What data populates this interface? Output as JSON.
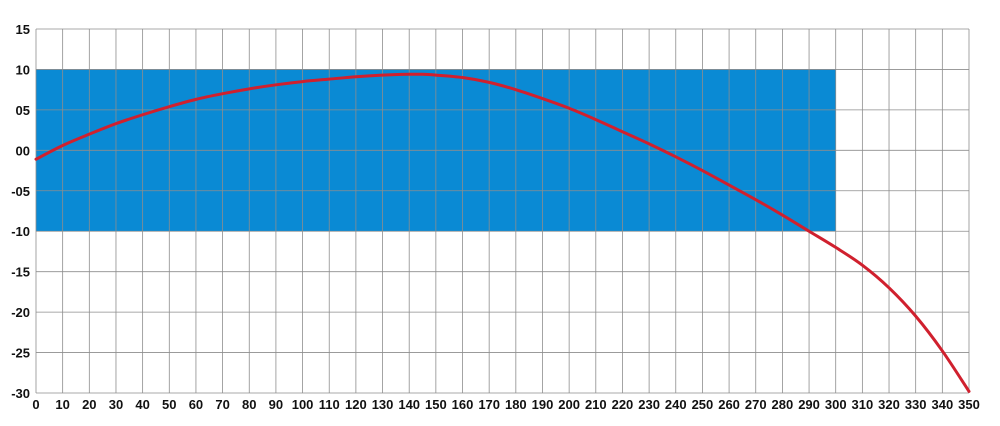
{
  "chart_data": {
    "type": "line",
    "title": "",
    "xlabel": "",
    "ylabel": "",
    "xlim": [
      0,
      350
    ],
    "ylim": [
      -30,
      15
    ],
    "grid": true,
    "legend": "none",
    "x_ticks": [
      {
        "value": 0,
        "label": "0"
      },
      {
        "value": 10,
        "label": "10"
      },
      {
        "value": 20,
        "label": "20"
      },
      {
        "value": 30,
        "label": "30"
      },
      {
        "value": 40,
        "label": "40"
      },
      {
        "value": 50,
        "label": "50"
      },
      {
        "value": 60,
        "label": "60"
      },
      {
        "value": 70,
        "label": "70"
      },
      {
        "value": 80,
        "label": "80"
      },
      {
        "value": 90,
        "label": "90"
      },
      {
        "value": 100,
        "label": "100"
      },
      {
        "value": 110,
        "label": "110"
      },
      {
        "value": 120,
        "label": "120"
      },
      {
        "value": 130,
        "label": "130"
      },
      {
        "value": 140,
        "label": "140"
      },
      {
        "value": 150,
        "label": "150"
      },
      {
        "value": 160,
        "label": "160"
      },
      {
        "value": 170,
        "label": "170"
      },
      {
        "value": 180,
        "label": "180"
      },
      {
        "value": 190,
        "label": "190"
      },
      {
        "value": 200,
        "label": "200"
      },
      {
        "value": 210,
        "label": "210"
      },
      {
        "value": 220,
        "label": "220"
      },
      {
        "value": 230,
        "label": "230"
      },
      {
        "value": 240,
        "label": "240"
      },
      {
        "value": 250,
        "label": "250"
      },
      {
        "value": 260,
        "label": "260"
      },
      {
        "value": 270,
        "label": "270"
      },
      {
        "value": 280,
        "label": "280"
      },
      {
        "value": 290,
        "label": "290"
      },
      {
        "value": 300,
        "label": "300"
      },
      {
        "value": 310,
        "label": "310"
      },
      {
        "value": 320,
        "label": "320"
      },
      {
        "value": 330,
        "label": "330"
      },
      {
        "value": 340,
        "label": "340"
      },
      {
        "value": 350,
        "label": "350"
      }
    ],
    "y_ticks": [
      {
        "value": 15,
        "label": "15"
      },
      {
        "value": 10,
        "label": "10"
      },
      {
        "value": 5,
        "label": "05"
      },
      {
        "value": 0,
        "label": "00"
      },
      {
        "value": -5,
        "label": "-05"
      },
      {
        "value": -10,
        "label": "-10"
      },
      {
        "value": -15,
        "label": "-15"
      },
      {
        "value": -20,
        "label": "-20"
      },
      {
        "value": -25,
        "label": "-25"
      },
      {
        "value": -30,
        "label": "-30"
      }
    ],
    "band": {
      "x": [
        0,
        300
      ],
      "y": [
        -10,
        10
      ],
      "color": "#0a8ad4"
    },
    "series": [
      {
        "color": "#d0202e",
        "x": [
          0,
          10,
          20,
          30,
          40,
          50,
          60,
          70,
          80,
          90,
          100,
          110,
          120,
          130,
          140,
          145,
          150,
          160,
          170,
          180,
          190,
          200,
          210,
          220,
          230,
          240,
          250,
          260,
          270,
          280,
          290,
          300,
          310,
          320,
          330,
          340,
          350
        ],
        "y": [
          -1.1,
          0.6,
          2.0,
          3.3,
          4.4,
          5.4,
          6.3,
          7.0,
          7.6,
          8.1,
          8.5,
          8.8,
          9.1,
          9.3,
          9.4,
          9.4,
          9.3,
          9.0,
          8.4,
          7.5,
          6.4,
          5.2,
          3.8,
          2.3,
          0.8,
          -0.8,
          -2.5,
          -4.3,
          -6.1,
          -8.0,
          -10.0,
          -12.0,
          -14.2,
          -17.0,
          -20.5,
          -24.8,
          -29.8
        ]
      }
    ]
  }
}
